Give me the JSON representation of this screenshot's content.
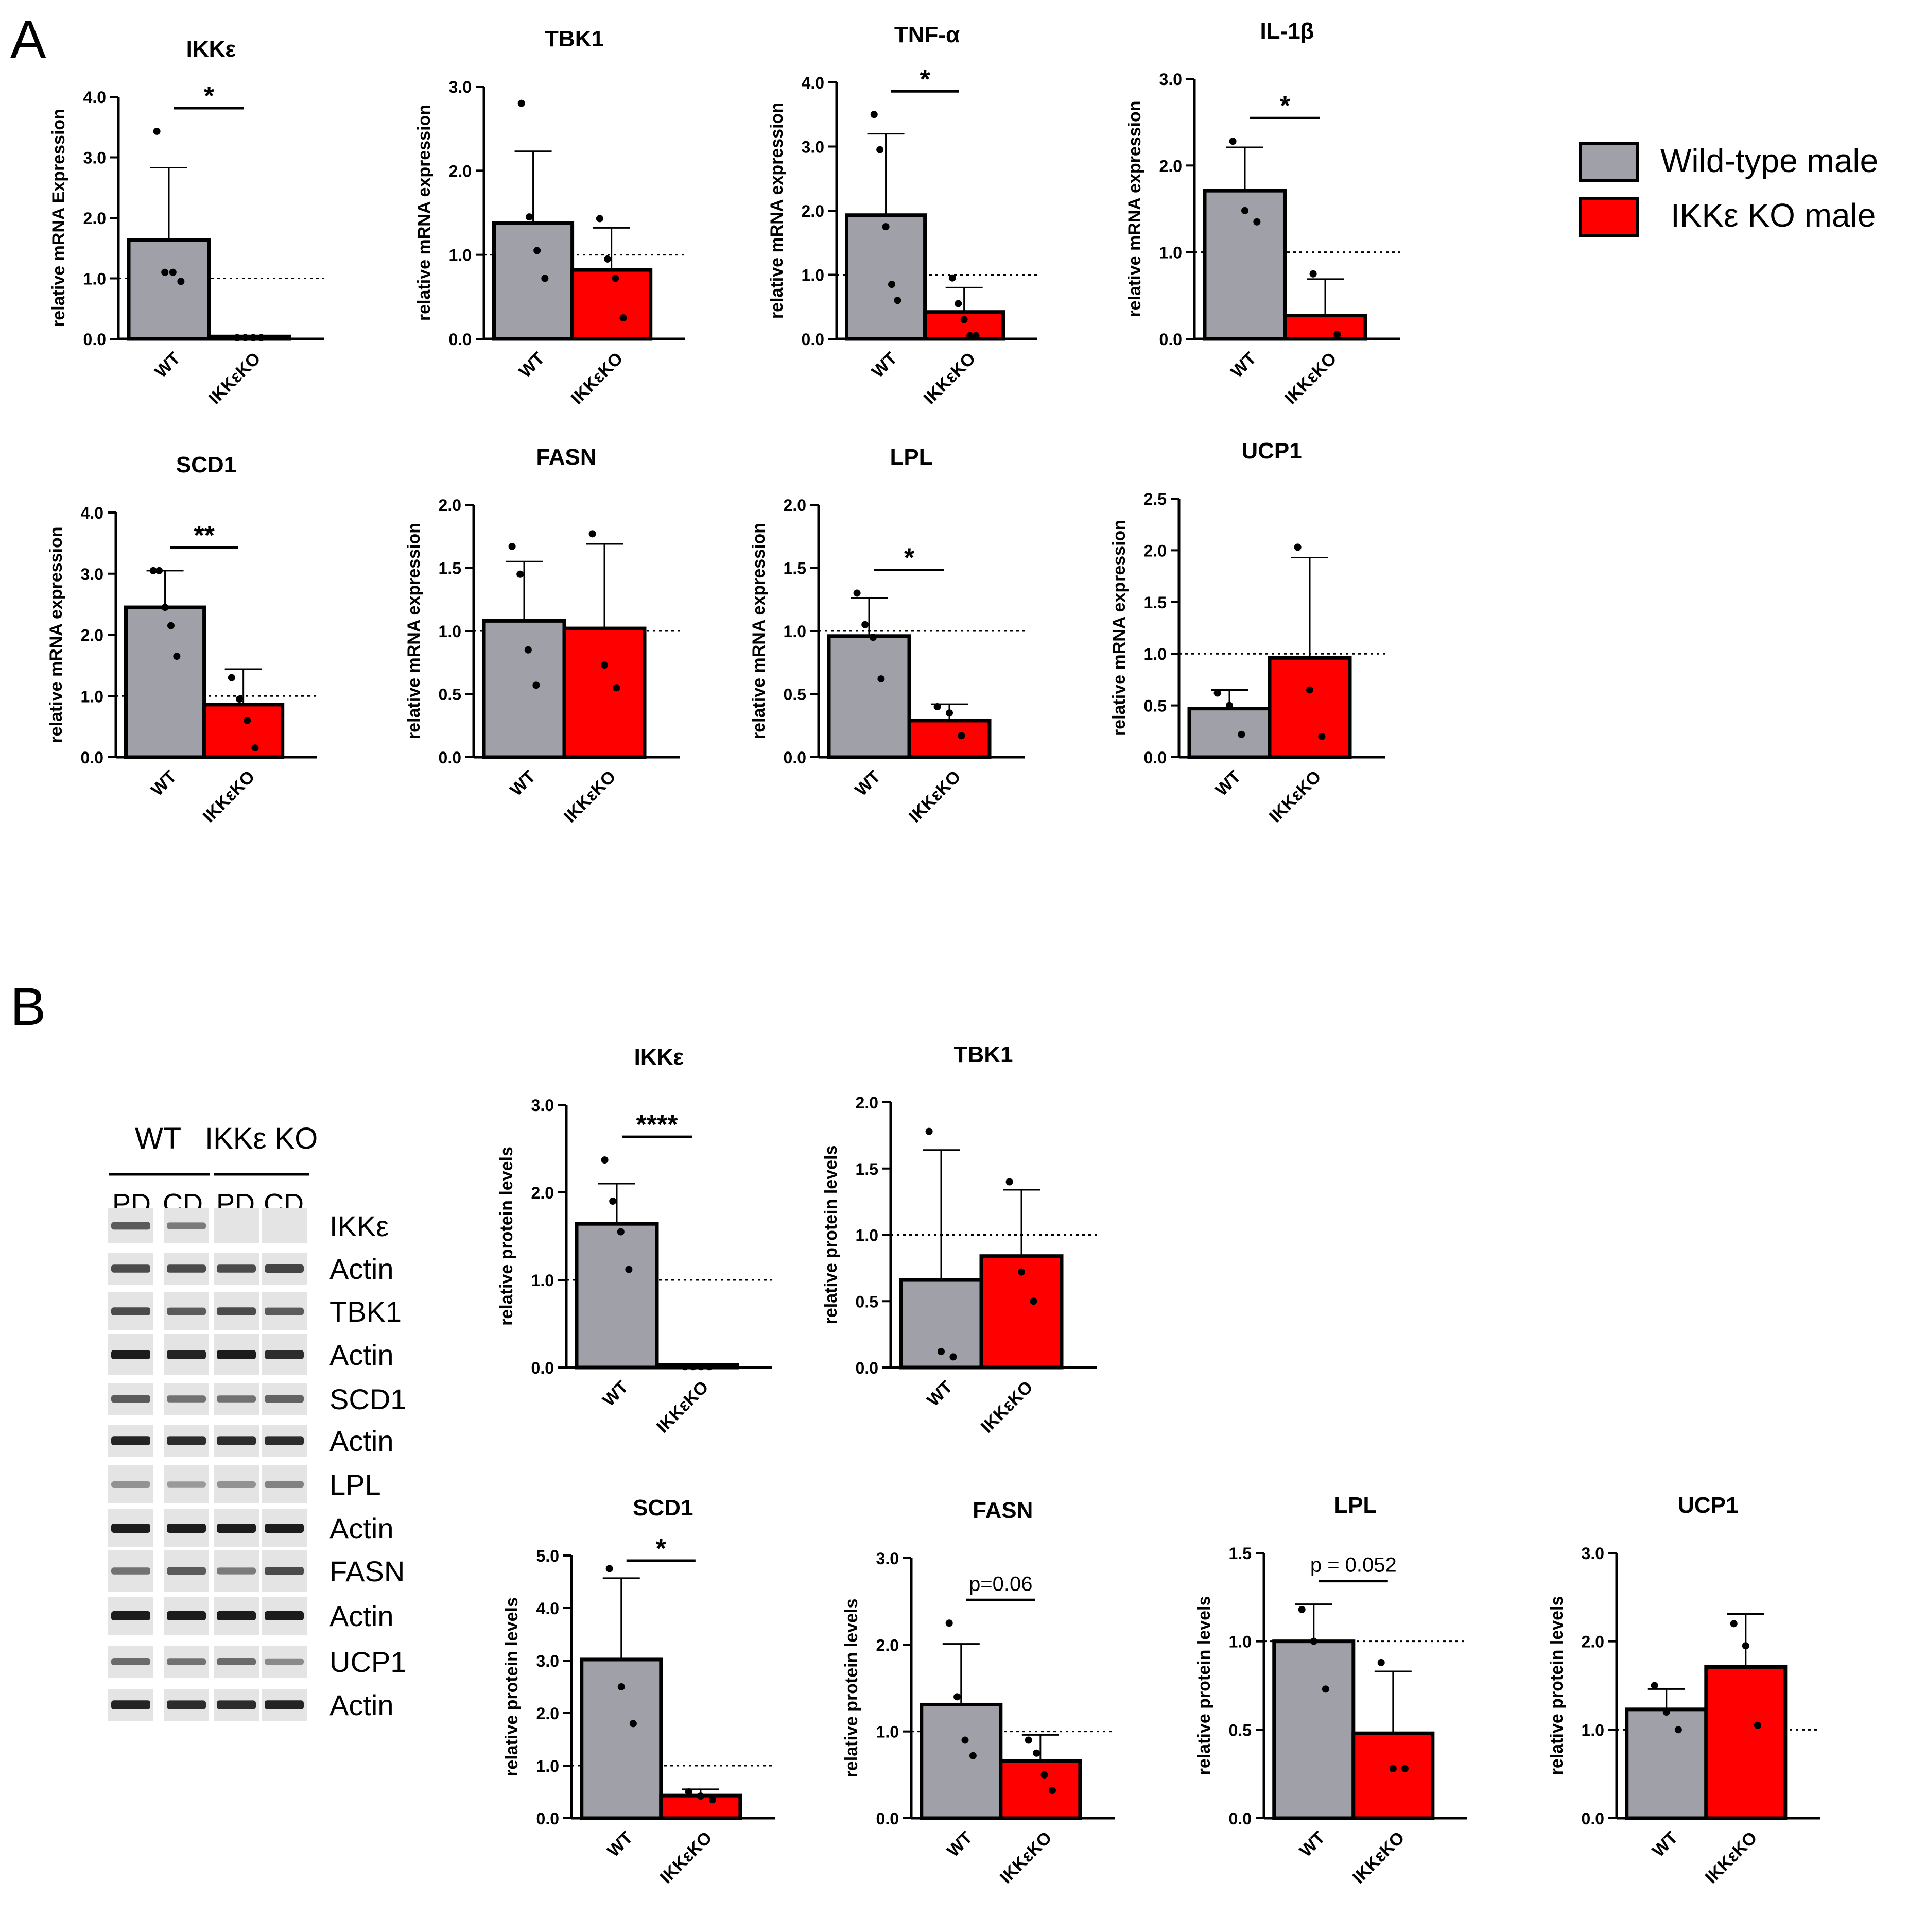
{
  "panel_labels": {
    "a": "A",
    "b": "B"
  },
  "colors": {
    "wt": "#a0a0a8",
    "ko": "#ff0000",
    "edge": "#000000"
  },
  "legend": {
    "wt_label": "Wild-type male",
    "ko_label": "IKKε KO male"
  },
  "blot": {
    "header_wt": "WT",
    "header_ko": "IKKε KO",
    "lanes": [
      "PD",
      "CD",
      "PD",
      "CD"
    ],
    "rows": [
      "IKKε",
      "Actin",
      "TBK1",
      "Actin",
      "SCD1",
      "Actin",
      "LPL",
      "Actin",
      "FASN",
      "Actin",
      "UCP1",
      "Actin"
    ]
  },
  "chart_data": [
    {
      "type": "bar",
      "title": "IKKε",
      "ylabel": "relative mRNA Expression",
      "categories": [
        "WT",
        "IKKεKO"
      ],
      "ylim": [
        0,
        4.0
      ],
      "yticks": [
        "0.0",
        "1.0",
        "2.0",
        "3.0",
        "4.0"
      ],
      "reference_line": 1.0,
      "series": [
        {
          "name": "WT",
          "value": 1.63,
          "error": 1.2,
          "points": [
            3.43,
            1.1,
            1.1,
            0.95
          ]
        },
        {
          "name": "IKKεKO",
          "value": 0.04,
          "error": 0,
          "points": [
            0.02,
            0.02,
            0.02,
            0.02
          ]
        }
      ],
      "significance": "*"
    },
    {
      "type": "bar",
      "title": "TBK1",
      "ylabel": "relative mRNA expression",
      "categories": [
        "WT",
        "IKKεKO"
      ],
      "ylim": [
        0,
        3.0
      ],
      "yticks": [
        "0.0",
        "1.0",
        "2.0",
        "3.0"
      ],
      "reference_line": 1.0,
      "series": [
        {
          "name": "WT",
          "value": 1.38,
          "error": 0.85,
          "points": [
            2.8,
            1.45,
            1.05,
            0.72
          ]
        },
        {
          "name": "IKKεKO",
          "value": 0.82,
          "error": 0.5,
          "points": [
            1.43,
            0.95,
            0.72,
            0.25
          ]
        }
      ],
      "significance": ""
    },
    {
      "type": "bar",
      "title": "TNF-α",
      "ylabel": "relative mRNA expression",
      "categories": [
        "WT",
        "IKKεKO"
      ],
      "ylim": [
        0,
        4.0
      ],
      "yticks": [
        "0.0",
        "1.0",
        "2.0",
        "3.0",
        "4.0"
      ],
      "reference_line": 1.0,
      "series": [
        {
          "name": "WT",
          "value": 1.93,
          "error": 1.27,
          "points": [
            3.5,
            2.95,
            1.75,
            0.85,
            0.6
          ]
        },
        {
          "name": "IKKεKO",
          "value": 0.42,
          "error": 0.38,
          "points": [
            0.95,
            0.55,
            0.3,
            0.05,
            0.05
          ]
        }
      ],
      "significance": "*"
    },
    {
      "type": "bar",
      "title": "IL-1β",
      "ylabel": "relative mRNA expression",
      "categories": [
        "WT",
        "IKKεKO"
      ],
      "ylim": [
        0,
        3.0
      ],
      "yticks": [
        "0.0",
        "1.0",
        "2.0",
        "3.0"
      ],
      "reference_line": 1.0,
      "series": [
        {
          "name": "WT",
          "value": 1.71,
          "error": 0.5,
          "points": [
            2.28,
            1.48,
            1.35
          ]
        },
        {
          "name": "IKKεKO",
          "value": 0.27,
          "error": 0.42,
          "points": [
            0.75,
            0.05
          ]
        }
      ],
      "significance": "*"
    },
    {
      "type": "bar",
      "title": "SCD1",
      "ylabel": "relative mRNA expression",
      "categories": [
        "WT",
        "IKKεKO"
      ],
      "ylim": [
        0,
        4.0
      ],
      "yticks": [
        "0.0",
        "1.0",
        "2.0",
        "3.0",
        "4.0"
      ],
      "reference_line": 1.0,
      "series": [
        {
          "name": "WT",
          "value": 2.45,
          "error": 0.6,
          "points": [
            3.05,
            3.05,
            2.45,
            2.15,
            1.65
          ]
        },
        {
          "name": "IKKεKO",
          "value": 0.86,
          "error": 0.58,
          "points": [
            1.3,
            0.95,
            0.6,
            0.15
          ]
        }
      ],
      "significance": "**"
    },
    {
      "type": "bar",
      "title": "FASN",
      "ylabel": "relative mRNA expression",
      "categories": [
        "WT",
        "IKKεKO"
      ],
      "ylim": [
        0,
        2.0
      ],
      "yticks": [
        "0.0",
        "0.5",
        "1.0",
        "1.5",
        "2.0"
      ],
      "reference_line": 1.0,
      "series": [
        {
          "name": "WT",
          "value": 1.08,
          "error": 0.47,
          "points": [
            1.67,
            1.45,
            0.85,
            0.57
          ]
        },
        {
          "name": "IKKεKO",
          "value": 1.02,
          "error": 0.67,
          "points": [
            1.77,
            0.73,
            0.55
          ]
        }
      ],
      "significance": ""
    },
    {
      "type": "bar",
      "title": "LPL",
      "ylabel": "relative mRNA expression",
      "categories": [
        "WT",
        "IKKεKO"
      ],
      "ylim": [
        0,
        2.0
      ],
      "yticks": [
        "0.0",
        "0.5",
        "1.0",
        "1.5",
        "2.0"
      ],
      "reference_line": 1.0,
      "series": [
        {
          "name": "WT",
          "value": 0.96,
          "error": 0.3,
          "points": [
            1.3,
            1.05,
            0.95,
            0.62
          ]
        },
        {
          "name": "IKKεKO",
          "value": 0.29,
          "error": 0.13,
          "points": [
            0.4,
            0.35,
            0.17
          ]
        }
      ],
      "significance": "*"
    },
    {
      "type": "bar",
      "title": "UCP1",
      "ylabel": "relative mRNA expression",
      "categories": [
        "WT",
        "IKKεKO"
      ],
      "ylim": [
        0,
        2.5
      ],
      "yticks": [
        "0.0",
        "0.5",
        "1.0",
        "1.5",
        "2.0",
        "2.5"
      ],
      "reference_line": 1.0,
      "series": [
        {
          "name": "WT",
          "value": 0.47,
          "error": 0.18,
          "points": [
            0.62,
            0.5,
            0.22
          ]
        },
        {
          "name": "IKKεKO",
          "value": 0.96,
          "error": 0.97,
          "points": [
            2.03,
            0.65,
            0.2
          ]
        }
      ],
      "significance": ""
    },
    {
      "type": "bar",
      "title": "IKKε",
      "ylabel": "relative protein levels",
      "categories": [
        "WT",
        "IKKεKO"
      ],
      "ylim": [
        0,
        3.0
      ],
      "yticks": [
        "0.0",
        "1.0",
        "2.0",
        "3.0"
      ],
      "reference_line": 1.0,
      "series": [
        {
          "name": "WT",
          "value": 1.64,
          "error": 0.46,
          "points": [
            2.37,
            1.9,
            1.55,
            1.12
          ]
        },
        {
          "name": "IKKεKO",
          "value": 0.03,
          "error": 0,
          "points": [
            0.01,
            0.01,
            0.01,
            0.01
          ]
        }
      ],
      "significance": "****"
    },
    {
      "type": "bar",
      "title": "TBK1",
      "ylabel": "relative protein levels",
      "categories": [
        "WT",
        "IKKεKO"
      ],
      "ylim": [
        0,
        2.0
      ],
      "yticks": [
        "0.0",
        "0.5",
        "1.0",
        "1.5",
        "2.0"
      ],
      "reference_line": 1.0,
      "series": [
        {
          "name": "WT",
          "value": 0.66,
          "error": 0.98,
          "points": [
            1.78,
            0.12,
            0.08
          ]
        },
        {
          "name": "IKKεKO",
          "value": 0.84,
          "error": 0.5,
          "points": [
            1.4,
            0.72,
            0.5
          ]
        }
      ],
      "significance": ""
    },
    {
      "type": "bar",
      "title": "SCD1",
      "ylabel": "relative protein levels",
      "categories": [
        "WT",
        "IKKεKO"
      ],
      "ylim": [
        0,
        5.0
      ],
      "yticks": [
        "0.0",
        "1.0",
        "2.0",
        "3.0",
        "4.0",
        "5.0"
      ],
      "reference_line": 1.0,
      "series": [
        {
          "name": "WT",
          "value": 3.02,
          "error": 1.55,
          "points": [
            4.75,
            2.5,
            1.8
          ]
        },
        {
          "name": "IKKεKO",
          "value": 0.43,
          "error": 0.12,
          "points": [
            0.5,
            0.42,
            0.35
          ]
        }
      ],
      "significance": "*"
    },
    {
      "type": "bar",
      "title": "FASN",
      "ylabel": "relative protein levels",
      "categories": [
        "WT",
        "IKKεKO"
      ],
      "ylim": [
        0,
        3.0
      ],
      "yticks": [
        "0.0",
        "1.0",
        "2.0",
        "3.0"
      ],
      "reference_line": 1.0,
      "series": [
        {
          "name": "WT",
          "value": 1.31,
          "error": 0.7,
          "points": [
            2.25,
            1.4,
            0.9,
            0.72
          ]
        },
        {
          "name": "IKKεKO",
          "value": 0.66,
          "error": 0.3,
          "points": [
            0.9,
            0.75,
            0.5,
            0.32
          ]
        }
      ],
      "significance": "p=0.06"
    },
    {
      "type": "bar",
      "title": "LPL",
      "ylabel": "relative protein levels",
      "categories": [
        "WT",
        "IKKεKO"
      ],
      "ylim": [
        0,
        1.5
      ],
      "yticks": [
        "0.0",
        "0.5",
        "1.0",
        "1.5"
      ],
      "reference_line": 1.0,
      "series": [
        {
          "name": "WT",
          "value": 1.0,
          "error": 0.21,
          "points": [
            1.18,
            1.0,
            0.73
          ]
        },
        {
          "name": "IKKεKO",
          "value": 0.48,
          "error": 0.35,
          "points": [
            0.88,
            0.28,
            0.28
          ]
        }
      ],
      "significance": "p = 0.052"
    },
    {
      "type": "bar",
      "title": "UCP1",
      "ylabel": "relative protein levels",
      "categories": [
        "WT",
        "IKKεKO"
      ],
      "ylim": [
        0,
        3.0
      ],
      "yticks": [
        "0.0",
        "1.0",
        "2.0",
        "3.0"
      ],
      "reference_line": 1.0,
      "series": [
        {
          "name": "WT",
          "value": 1.23,
          "error": 0.23,
          "points": [
            1.5,
            1.2,
            1.0
          ]
        },
        {
          "name": "IKKεKO",
          "value": 1.71,
          "error": 0.6,
          "points": [
            2.2,
            1.95,
            1.05
          ]
        }
      ],
      "significance": ""
    }
  ]
}
